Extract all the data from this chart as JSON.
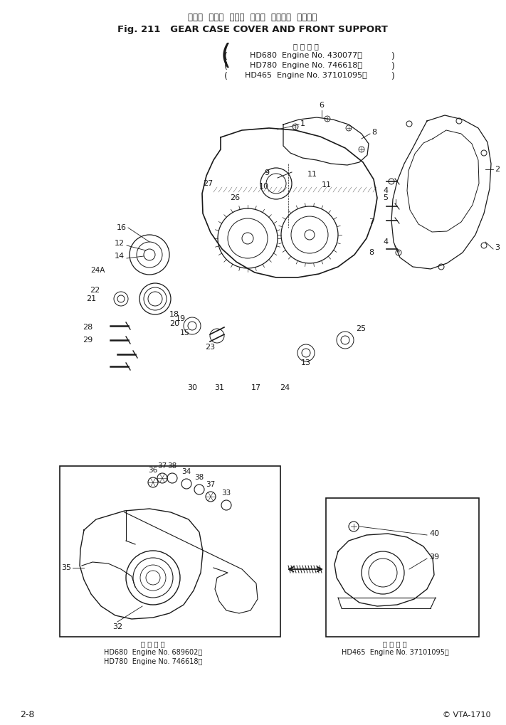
{
  "title_jp": "ギャー  ケース  カバー  および  フロント  サポート",
  "title_en": "Fig. 211   GEAR CASE COVER AND FRONT SUPPORT",
  "appl_label": "適 用 号 機",
  "appl_lines": [
    "HD680  Engine No. 430077～",
    "HD780  Engine No. 746618～",
    "HD465  Engine No. 37101095～"
  ],
  "bottom_left_label": "適 用 号 機",
  "bottom_left_lines": [
    "HD680  Engine No. 689602～",
    "HD780  Engine No. 746618～"
  ],
  "bottom_right_label": "適 用 号 機",
  "bottom_right_line": "HD465  Engine No. 37101095～",
  "page_number": "2-8",
  "model_number": "© VTA-1710",
  "bg_color": "#ffffff"
}
